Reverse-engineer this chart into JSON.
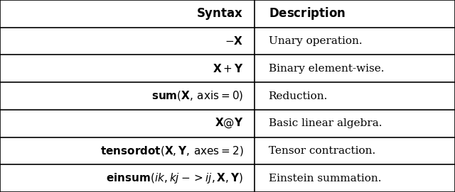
{
  "col_split": 0.56,
  "background_color": "#ffffff",
  "line_color": "#000000",
  "text_color": "#000000",
  "header_fontsize": 12,
  "body_fontsize": 11,
  "syntax_entries": [
    "$-\\mathbf{X}$",
    "$\\mathbf{X}+\\mathbf{Y}$",
    "$\\mathbf{sum}(\\mathbf{X},\\,\\mathrm{axis}=0)$",
    "$\\mathbf{X}@\\mathbf{Y}$",
    "$\\mathbf{tensordot}(\\mathbf{X},\\mathbf{Y},\\,\\mathrm{axes}=2)$",
    "$\\mathbf{einsum}(ik,kj->ij,\\mathbf{X},\\mathbf{Y})$"
  ],
  "desc_entries": [
    "Unary operation.",
    "Binary element-wise.",
    "Reduction.",
    "Basic linear algebra.",
    "Tensor contraction.",
    "Einstein summation."
  ]
}
